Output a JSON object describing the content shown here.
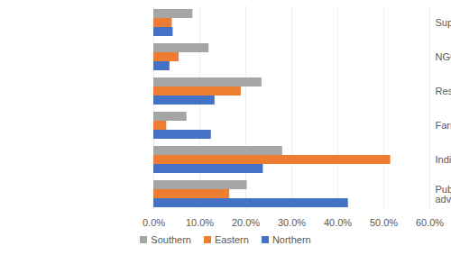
{
  "chart_data": {
    "type": "bar",
    "orientation": "horizontal",
    "categories": [
      "Supply chain company",
      "NGO/ charity etc.",
      "Research institution",
      "Farmer's organisation",
      "Individual farmer",
      "Public/ private extension or advisory service"
    ],
    "series": [
      {
        "name": "Southern",
        "color": "#a5a5a5",
        "values": [
          8.5,
          12.0,
          23.5,
          7.2,
          28.0,
          20.3
        ]
      },
      {
        "name": "Eastern",
        "color": "#ed7d31",
        "values": [
          4.0,
          5.5,
          19.0,
          2.8,
          51.5,
          16.5
        ]
      },
      {
        "name": "Northern",
        "color": "#4472c4",
        "values": [
          4.2,
          3.5,
          13.3,
          12.5,
          23.8,
          42.3
        ]
      }
    ],
    "xlim": [
      0,
      60
    ],
    "xticks": [
      {
        "value": 0,
        "label": "0.0%"
      },
      {
        "value": 10,
        "label": "10.0%"
      },
      {
        "value": 20,
        "label": "20.0%"
      },
      {
        "value": 30,
        "label": "30.0%"
      },
      {
        "value": 40,
        "label": "40.0%"
      },
      {
        "value": 50,
        "label": "50.0%"
      },
      {
        "value": 60,
        "label": "60.0%"
      }
    ],
    "grid": true,
    "legend": "bottom"
  }
}
